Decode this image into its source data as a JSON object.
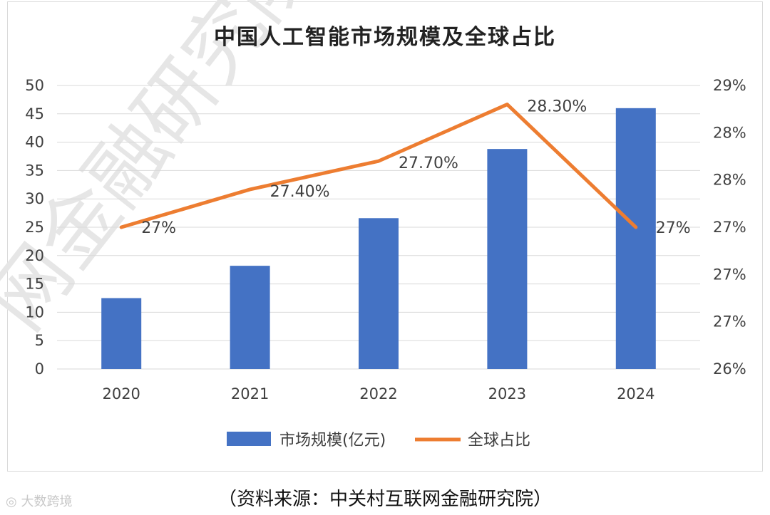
{
  "chart_data": {
    "type": "bar",
    "title": "中国人工智能市场规模及全球占比",
    "categories": [
      "2020",
      "2021",
      "2022",
      "2023",
      "2024"
    ],
    "series": [
      {
        "name": "市场规模(亿元)",
        "type": "bar",
        "axis": "left",
        "color": "#4472C4",
        "values": [
          12.5,
          18.2,
          26.6,
          38.8,
          46.0
        ]
      },
      {
        "name": "全球占比",
        "type": "line",
        "axis": "right",
        "color": "#ED7D31",
        "values": [
          27.0,
          27.4,
          27.7,
          28.3,
          27.0
        ],
        "data_labels": [
          "27%",
          "27.40%",
          "27.70%",
          "28.30%",
          "27%"
        ]
      }
    ],
    "y_left": {
      "ylim": [
        0,
        50
      ],
      "ticks": [
        "0",
        "5",
        "10",
        "15",
        "20",
        "25",
        "30",
        "35",
        "40",
        "45",
        "50"
      ]
    },
    "y_right": {
      "ylim": [
        25.5,
        28.5
      ],
      "ticks": [
        "26%",
        "27%",
        "27%",
        "27%",
        "28%",
        "28%",
        "29%"
      ]
    },
    "grid": true,
    "legend": "bottom"
  },
  "watermark": "网金融研究院",
  "source": "（资料来源：中关村互联网金融研究院）",
  "logo_text": "大数跨境"
}
